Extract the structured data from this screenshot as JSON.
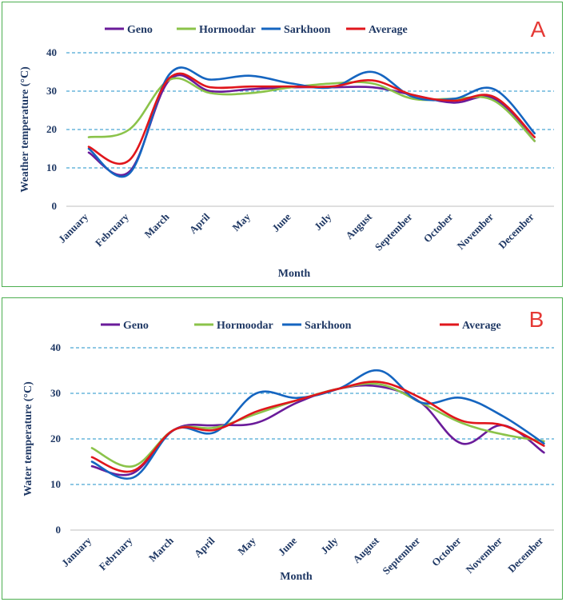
{
  "colors": {
    "Geno": "#6a1b9a",
    "Hormoodar": "#8bc34a",
    "Sarkhoon": "#1565c0",
    "Average": "#e0161c",
    "grid": "#1e90c8",
    "text": "#1f3864"
  },
  "chart_data": [
    {
      "type": "line",
      "panel_label": "A",
      "title": "",
      "xlabel": "Month",
      "ylabel": "Weather temperature (°C)",
      "ylim": [
        0,
        40
      ],
      "yticks": [
        0,
        10,
        20,
        30,
        40
      ],
      "grid": "horizontal dashed",
      "legend": "top",
      "categories": [
        "January",
        "February",
        "March",
        "April",
        "May",
        "June",
        "July",
        "August",
        "September",
        "October",
        "November",
        "December"
      ],
      "series": [
        {
          "name": "Geno",
          "values": [
            14,
            9,
            33,
            30,
            30.5,
            31,
            31,
            31,
            29,
            27,
            28,
            17
          ]
        },
        {
          "name": "Hormoodar",
          "values": [
            18,
            20,
            33,
            29.5,
            29.5,
            31,
            32,
            32,
            28,
            28,
            27.5,
            17
          ]
        },
        {
          "name": "Sarkhoon",
          "values": [
            15,
            8.5,
            34.5,
            33,
            34,
            32,
            31,
            35,
            28.5,
            28,
            30.5,
            19
          ]
        },
        {
          "name": "Average",
          "values": [
            15.5,
            12,
            33.5,
            31,
            31.2,
            31.2,
            31.2,
            32.8,
            29,
            27.5,
            28.5,
            18
          ]
        }
      ]
    },
    {
      "type": "line",
      "panel_label": "B",
      "title": "",
      "xlabel": "Month",
      "ylabel": "Water temperature (°C)",
      "ylim": [
        0,
        40
      ],
      "yticks": [
        0,
        10,
        20,
        30,
        40
      ],
      "grid": "horizontal dashed",
      "legend": "top",
      "categories": [
        "January",
        "February",
        "March",
        "April",
        "May",
        "June",
        "July",
        "August",
        "September",
        "October",
        "November",
        "December"
      ],
      "series": [
        {
          "name": "Geno",
          "values": [
            14,
            12.5,
            22,
            23,
            23.5,
            28,
            31,
            31.5,
            28,
            19,
            23,
            17
          ]
        },
        {
          "name": "Hormoodar",
          "values": [
            18,
            14,
            22,
            22.5,
            25.5,
            28.5,
            31,
            32,
            28,
            23.5,
            21,
            19.5
          ]
        },
        {
          "name": "Sarkhoon",
          "values": [
            15,
            11.5,
            22,
            21.5,
            30,
            29,
            31,
            35,
            28,
            29,
            25,
            19
          ]
        },
        {
          "name": "Average",
          "values": [
            16,
            13,
            22,
            22,
            26,
            28.5,
            31,
            32.5,
            29,
            24,
            23,
            18.5
          ]
        }
      ]
    }
  ]
}
